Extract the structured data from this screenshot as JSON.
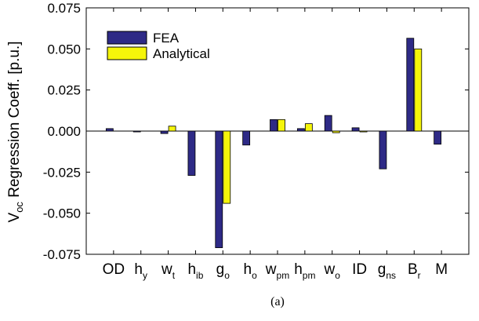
{
  "chart_data": {
    "type": "bar",
    "ylabel": {
      "main": "V",
      "sub": "oc",
      "rest": " Regression Coeff. [p.u.]"
    },
    "ylim": [
      -0.075,
      0.075
    ],
    "yticks": [
      "0.075",
      "0.050",
      "0.025",
      "0.000",
      "-0.025",
      "-0.050",
      "-0.075"
    ],
    "ytick_values": [
      0.075,
      0.05,
      0.025,
      0.0,
      -0.025,
      -0.05,
      -0.075
    ],
    "categories": [
      {
        "main": "OD",
        "sub": ""
      },
      {
        "main": "h",
        "sub": "y"
      },
      {
        "main": "w",
        "sub": "t"
      },
      {
        "main": "h",
        "sub": "ib"
      },
      {
        "main": "g",
        "sub": "o"
      },
      {
        "main": "h",
        "sub": "o"
      },
      {
        "main": "w",
        "sub": "pm"
      },
      {
        "main": "h",
        "sub": "pm"
      },
      {
        "main": "w",
        "sub": "o"
      },
      {
        "main": "ID",
        "sub": ""
      },
      {
        "main": "g",
        "sub": "ns"
      },
      {
        "main": "B",
        "sub": "r"
      },
      {
        "main": "M",
        "sub": ""
      }
    ],
    "series": [
      {
        "name": "FEA",
        "color": "#2e2a86",
        "values": [
          0.0015,
          -0.0005,
          -0.0015,
          -0.027,
          -0.071,
          -0.0085,
          0.007,
          0.0015,
          0.0095,
          0.002,
          -0.023,
          0.0565,
          -0.008
        ]
      },
      {
        "name": "Analytical",
        "color": "#f5f50a",
        "values": [
          0.0,
          0.0,
          0.003,
          0.0,
          -0.044,
          0.0,
          0.007,
          0.0045,
          -0.001,
          -0.0005,
          0.0,
          0.05,
          0.0
        ]
      }
    ],
    "legend_position": "top-left",
    "grid": false
  },
  "caption": "(a)"
}
